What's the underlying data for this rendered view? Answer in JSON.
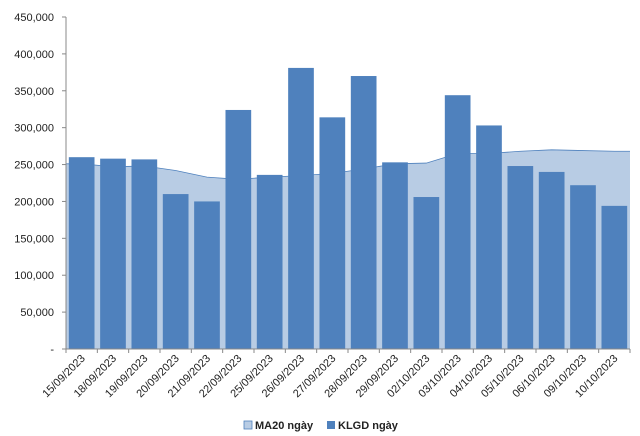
{
  "chart_data": {
    "type": "bar",
    "categories": [
      "15/09/2023",
      "18/09/2023",
      "19/09/2023",
      "20/09/2023",
      "21/09/2023",
      "22/09/2023",
      "25/09/2023",
      "26/09/2023",
      "27/09/2023",
      "28/09/2023",
      "29/09/2023",
      "02/10/2023",
      "03/10/2023",
      "04/10/2023",
      "05/10/2023",
      "06/10/2023",
      "09/10/2023",
      "10/10/2023"
    ],
    "series": [
      {
        "name": "MA20 ngày",
        "type": "area",
        "color": "#b8cce4",
        "stroke": "#4f81bd",
        "values": [
          251000,
          247000,
          248000,
          242000,
          233000,
          230000,
          233000,
          235000,
          238000,
          244000,
          251000,
          252000,
          265000,
          265000,
          268000,
          270000,
          269000,
          268000
        ]
      },
      {
        "name": "KLGD ngày",
        "type": "bar",
        "color": "#4f81bd",
        "values": [
          260000,
          258000,
          257000,
          210000,
          200000,
          324000,
          236000,
          381000,
          314000,
          370000,
          253000,
          206000,
          344000,
          303000,
          248000,
          240000,
          222000,
          194000
        ]
      }
    ],
    "ylim": [
      0,
      450000
    ],
    "yticks": [
      0,
      50000,
      100000,
      150000,
      200000,
      250000,
      300000,
      350000,
      400000,
      450000
    ],
    "ytick_labels": [
      "-",
      "50,000",
      "100,000",
      "150,000",
      "200,000",
      "250,000",
      "300,000",
      "350,000",
      "400,000",
      "450,000"
    ],
    "grid": false,
    "legend_position": "bottom"
  }
}
